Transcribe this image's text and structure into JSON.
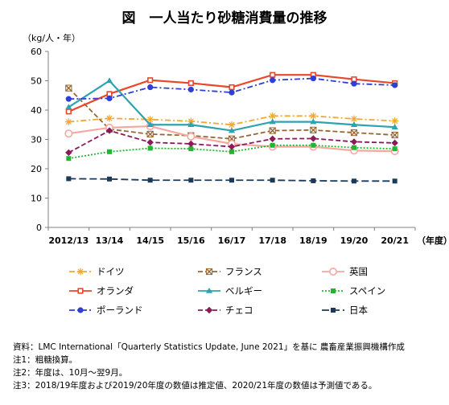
{
  "chart_data": {
    "type": "line",
    "title": "図　一人当たり砂糖消費量の推移",
    "ylabel": "（kg/人・年）",
    "xlabel": "（年度）",
    "ylim": [
      0,
      60
    ],
    "yticks": [
      0,
      10,
      20,
      30,
      40,
      50,
      60
    ],
    "grid": false,
    "legend_position": "bottom",
    "categories": [
      "2012/13",
      "13/14",
      "14/15",
      "15/16",
      "16/17",
      "17/18",
      "18/19",
      "19/20",
      "20/21"
    ],
    "series": [
      {
        "name": "ドイツ",
        "color": "#f0a830",
        "style": "dash-dot",
        "marker": "asterisk",
        "values": [
          36,
          37.2,
          36.8,
          36.2,
          35,
          38,
          38,
          37,
          36.3
        ]
      },
      {
        "name": "フランス",
        "color": "#996633",
        "style": "dash",
        "marker": "square-x",
        "values": [
          47.5,
          33.5,
          31.8,
          31.3,
          30.2,
          33,
          33.2,
          32.3,
          31.5
        ]
      },
      {
        "name": "英国",
        "color": "#f4a8a0",
        "style": "solid",
        "marker": "circle-open",
        "values": [
          32,
          34,
          34.5,
          31,
          28.5,
          27.5,
          27.5,
          26.2,
          26
        ]
      },
      {
        "name": "オランダ",
        "color": "#e8472a",
        "style": "solid",
        "marker": "square-open",
        "values": [
          39.5,
          45.5,
          50.2,
          49.2,
          47.8,
          52,
          52,
          50.5,
          49.2
        ]
      },
      {
        "name": "ベルギー",
        "color": "#2ea3b0",
        "style": "solid",
        "marker": "triangle",
        "values": [
          41,
          50,
          35,
          35,
          33,
          36,
          36,
          35,
          34.2
        ]
      },
      {
        "name": "スペイン",
        "color": "#22b532",
        "style": "dot",
        "marker": "square",
        "values": [
          23.5,
          25.8,
          27,
          26.8,
          25.8,
          28,
          28,
          27.2,
          26.8
        ]
      },
      {
        "name": "ポーランド",
        "color": "#2d3fd6",
        "style": "dash-dot",
        "marker": "circle",
        "values": [
          43.8,
          44,
          47.8,
          47,
          46,
          50.2,
          50.8,
          49,
          48.5
        ]
      },
      {
        "name": "チェコ",
        "color": "#8c1a5a",
        "style": "dash",
        "marker": "diamond",
        "values": [
          25.5,
          33,
          29,
          28.5,
          27.5,
          30.2,
          30.3,
          29.2,
          28.8
        ]
      },
      {
        "name": "日本",
        "color": "#1b3a5a",
        "style": "dash-long",
        "marker": "square",
        "values": [
          16.6,
          16.5,
          16.1,
          16.1,
          16.1,
          16.1,
          15.9,
          15.8,
          15.8
        ]
      }
    ]
  },
  "notes": {
    "source": "資料：LMC International「Quarterly Statistics Update, June 2021」を基に 農畜産業振興機構作成",
    "note1": "注1：粗糖換算。",
    "note2": "注2：年度は、10月～翌9月。",
    "note3": "注3：2018/19年度および2019/20年度の数値は推定値、2020/21年度の数値は予測値である。"
  }
}
